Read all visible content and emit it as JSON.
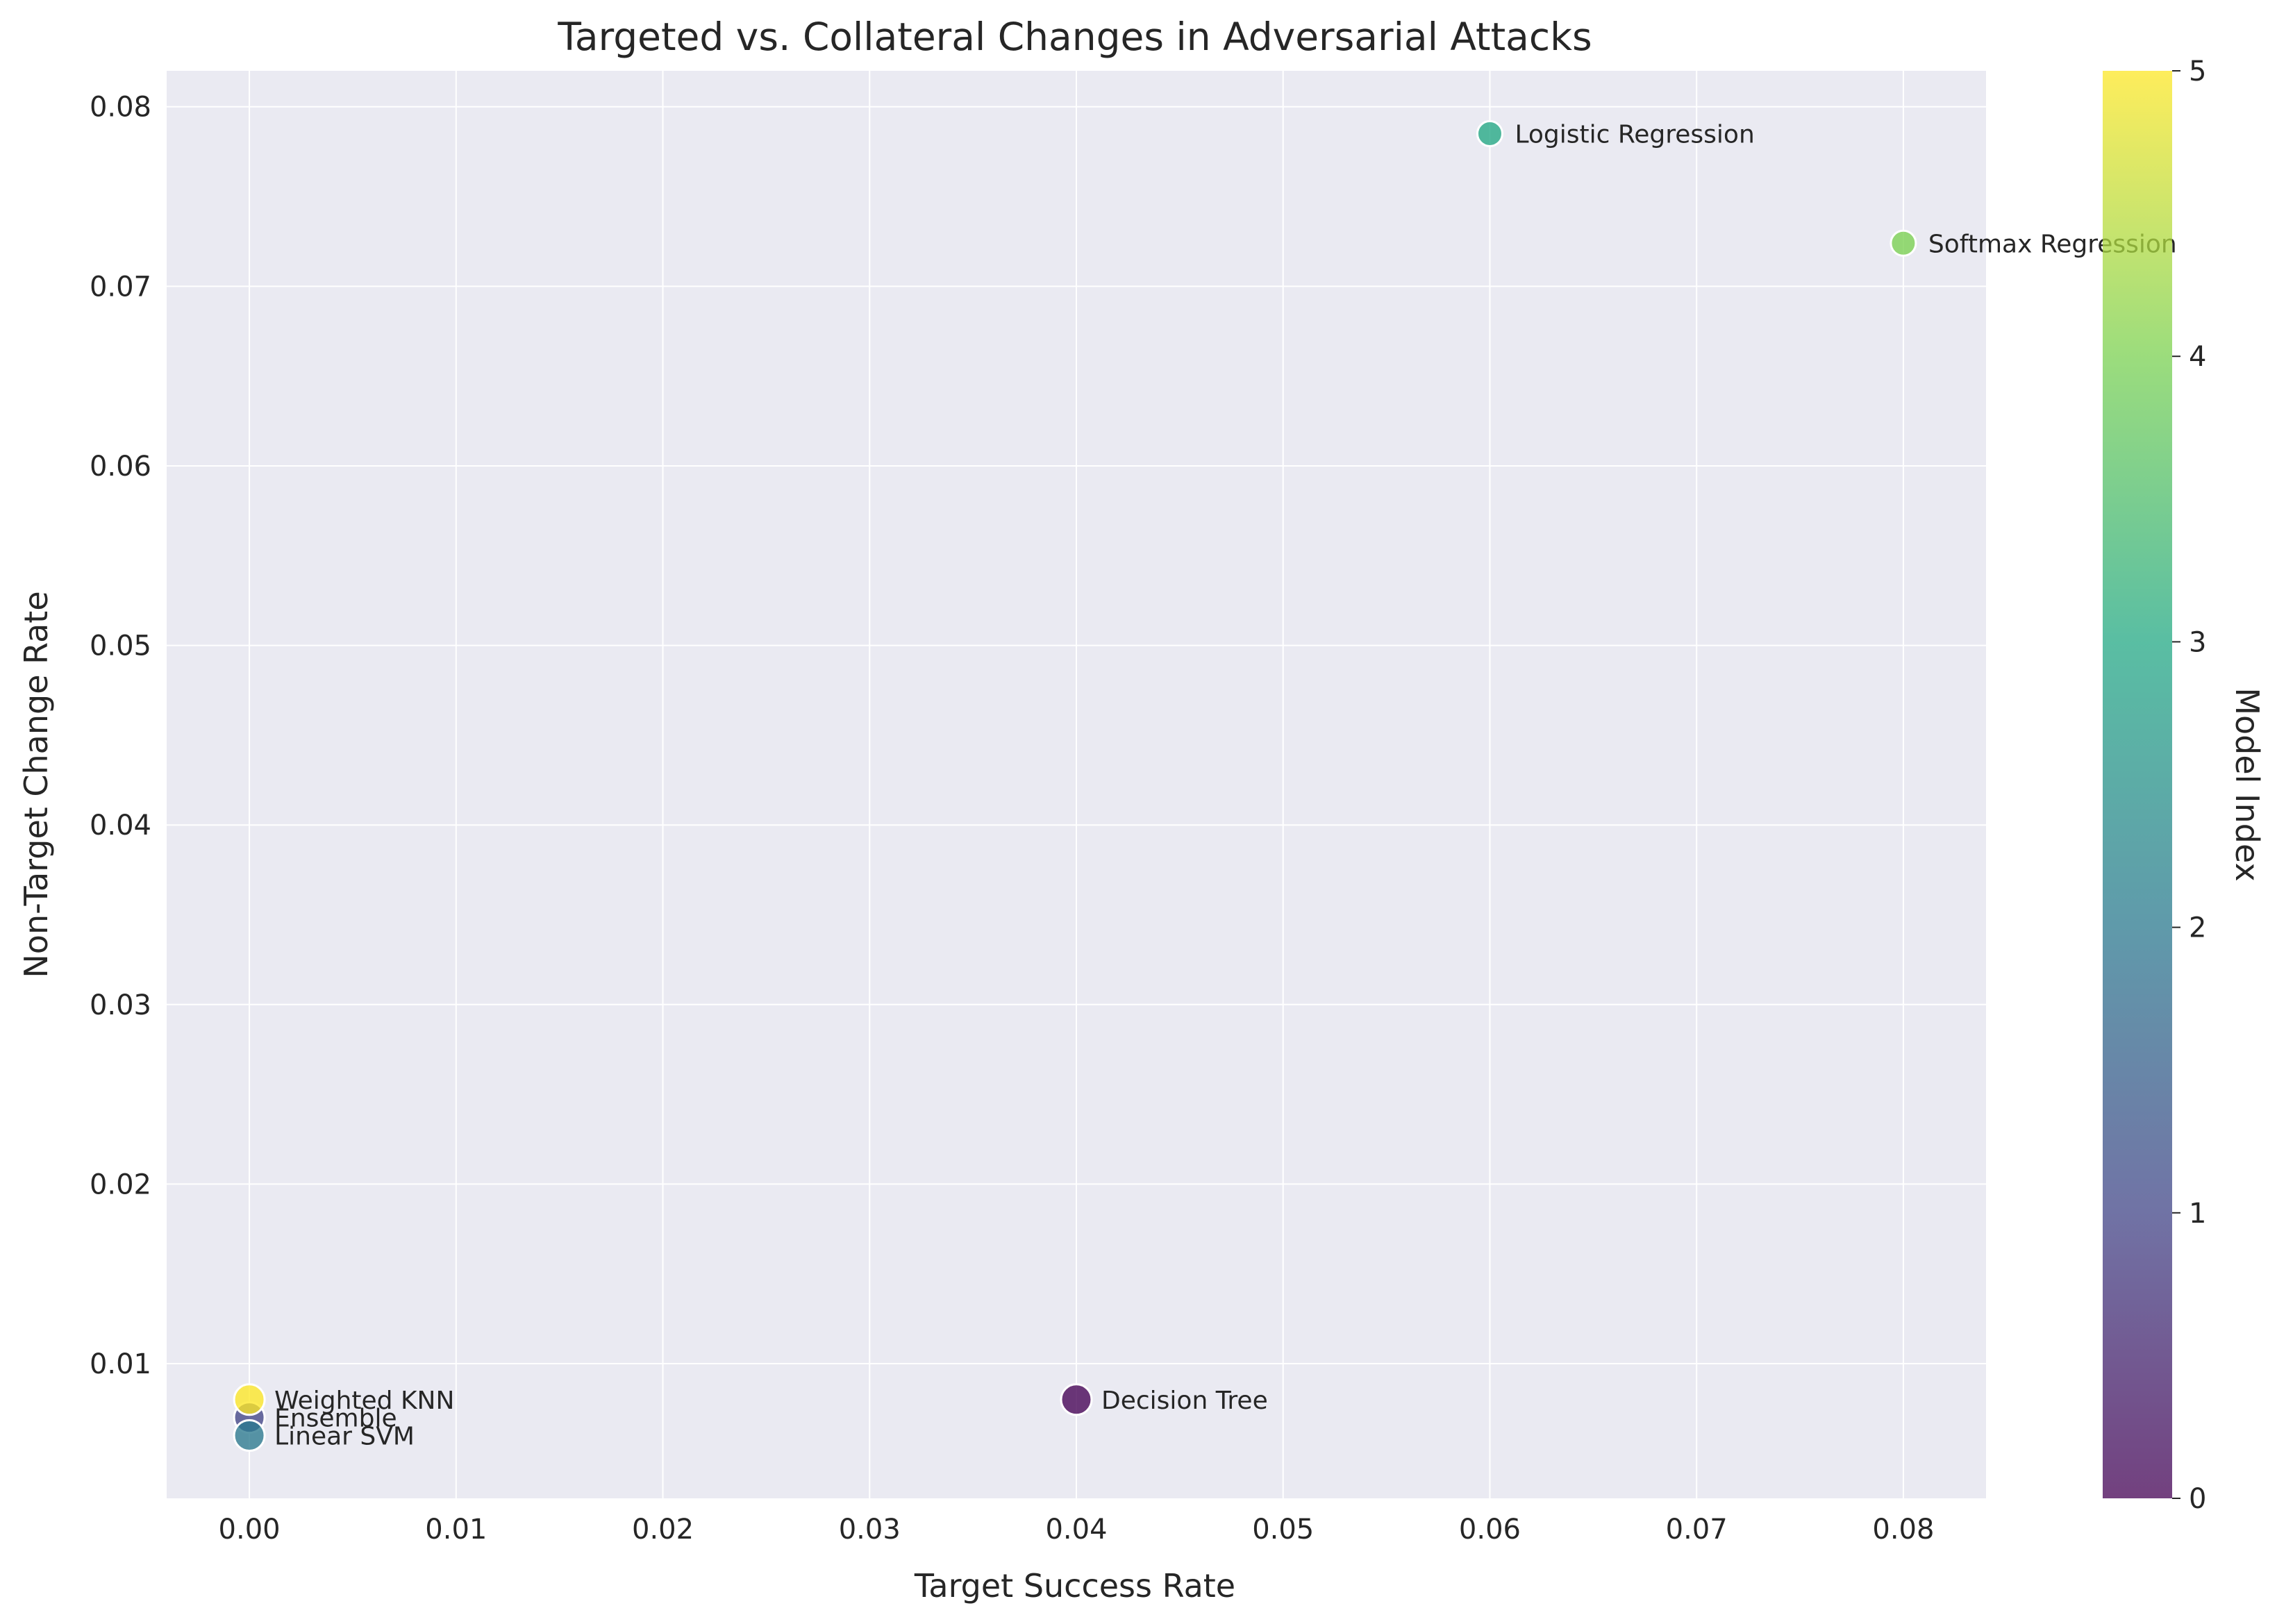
{
  "chart_data": {
    "type": "scatter",
    "title": "Targeted vs. Collateral Changes in Adversarial Attacks",
    "xlabel": "Target Success Rate",
    "ylabel": "Non-Target Change Rate",
    "xlim": [
      -0.004,
      0.084
    ],
    "ylim": [
      0.0025,
      0.082
    ],
    "xticks": [
      "0.00",
      "0.01",
      "0.02",
      "0.03",
      "0.04",
      "0.05",
      "0.06",
      "0.07",
      "0.08"
    ],
    "xtick_values": [
      0.0,
      0.01,
      0.02,
      0.03,
      0.04,
      0.05,
      0.06,
      0.07,
      0.08
    ],
    "yticks": [
      "0.01",
      "0.02",
      "0.03",
      "0.04",
      "0.05",
      "0.06",
      "0.07",
      "0.08"
    ],
    "ytick_values": [
      0.01,
      0.02,
      0.03,
      0.04,
      0.05,
      0.06,
      0.07,
      0.08
    ],
    "grid": true,
    "colorbar": {
      "label": "Model Index",
      "range": [
        0,
        5
      ],
      "ticks": [
        "0",
        "1",
        "2",
        "3",
        "4",
        "5"
      ],
      "colormap": "viridis"
    },
    "points": [
      {
        "label": "Decision Tree",
        "x": 0.04,
        "y": 0.008,
        "model_index": 0
      },
      {
        "label": "Ensemble",
        "x": 0.0,
        "y": 0.007,
        "model_index": 1
      },
      {
        "label": "Linear SVM",
        "x": 0.0,
        "y": 0.006,
        "model_index": 2
      },
      {
        "label": "Logistic Regression",
        "x": 0.06,
        "y": 0.0785,
        "model_index": 3
      },
      {
        "label": "Softmax Regression",
        "x": 0.08,
        "y": 0.0724,
        "model_index": 4
      },
      {
        "label": "Weighted KNN",
        "x": 0.0,
        "y": 0.008,
        "model_index": 5
      }
    ],
    "colors": {
      "plot_background": "#eaeaf2",
      "grid": "#ffffff",
      "text": "#262626",
      "marker_edge": "#ffffff"
    }
  }
}
